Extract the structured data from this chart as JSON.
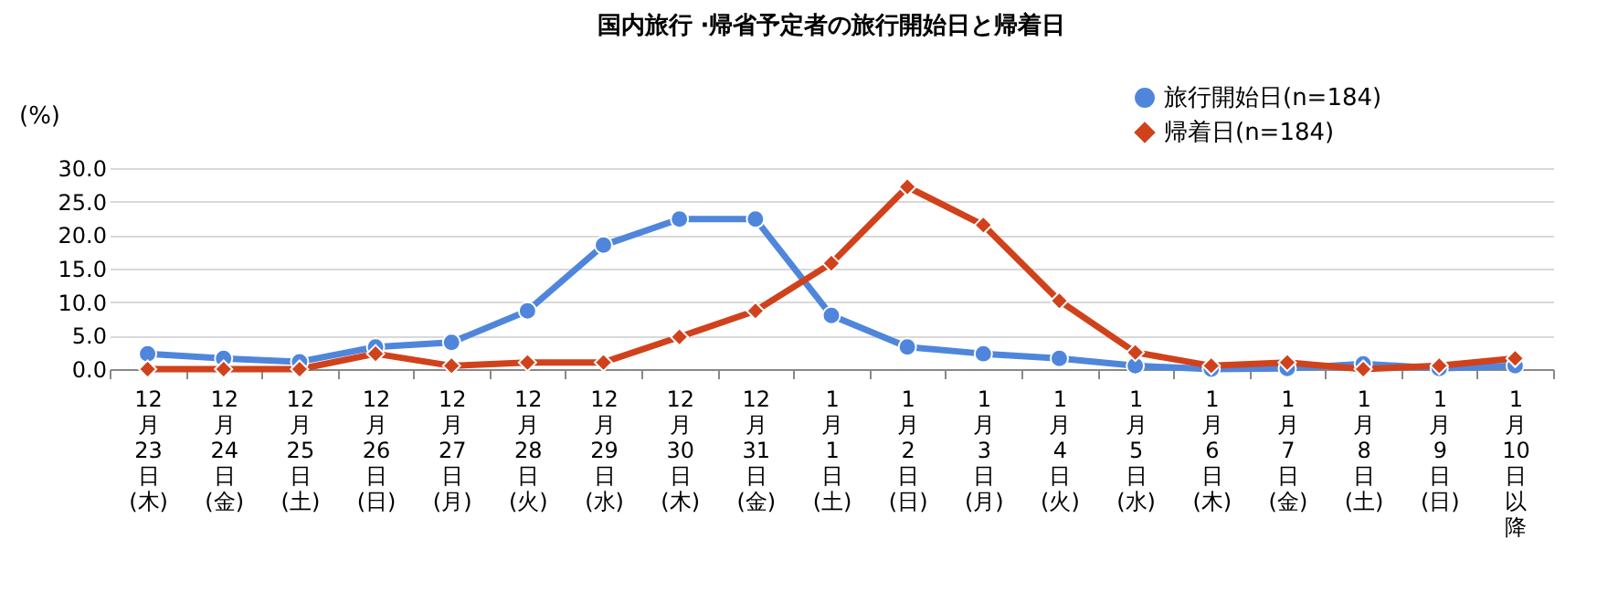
{
  "chart_data": {
    "type": "line",
    "title": "国内旅行 ·帰省予定者の旅行開始日と帰着日",
    "ylabel": "(%)",
    "categories": [
      "12月23日(木)",
      "12月24日(金)",
      "12月25日(土)",
      "12月26日(日)",
      "12月27日(月)",
      "12月28日(火)",
      "12月29日(水)",
      "12月30日(木)",
      "12月31日(金)",
      "1月1日(土)",
      "1月2日(日)",
      "1月3日(月)",
      "1月4日(火)",
      "1月5日(水)",
      "1月6日(木)",
      "1月7日(金)",
      "1月8日(土)",
      "1月9日(日)",
      "1月10日以降"
    ],
    "series": [
      {
        "name": "旅行開始日(n=184)",
        "color": "#4f86dc",
        "marker": "circle",
        "values": [
          2.3,
          1.6,
          1.1,
          3.3,
          4.0,
          8.7,
          18.5,
          22.4,
          22.4,
          8.0,
          3.3,
          2.3,
          1.6,
          0.5,
          0.0,
          0.1,
          0.8,
          0.1,
          0.5
        ]
      },
      {
        "name": "帰着日(n=184)",
        "color": "#d0421c",
        "marker": "diamond",
        "values": [
          0.0,
          0.0,
          0.0,
          2.3,
          0.5,
          1.0,
          1.0,
          4.8,
          8.7,
          15.8,
          27.2,
          21.5,
          10.2,
          2.5,
          0.5,
          1.0,
          0.0,
          0.5,
          1.6
        ]
      }
    ],
    "ylim": [
      0,
      30
    ],
    "yticks": [
      {
        "value": 0,
        "label": "0.0"
      },
      {
        "value": 5,
        "label": "5.0"
      },
      {
        "value": 10,
        "label": "10.0"
      },
      {
        "value": 15,
        "label": "15.0"
      },
      {
        "value": 20,
        "label": "20.0"
      },
      {
        "value": 25,
        "label": "25.0"
      },
      {
        "value": 30,
        "label": "30.0"
      }
    ],
    "grid": "y",
    "legend": "top right"
  }
}
